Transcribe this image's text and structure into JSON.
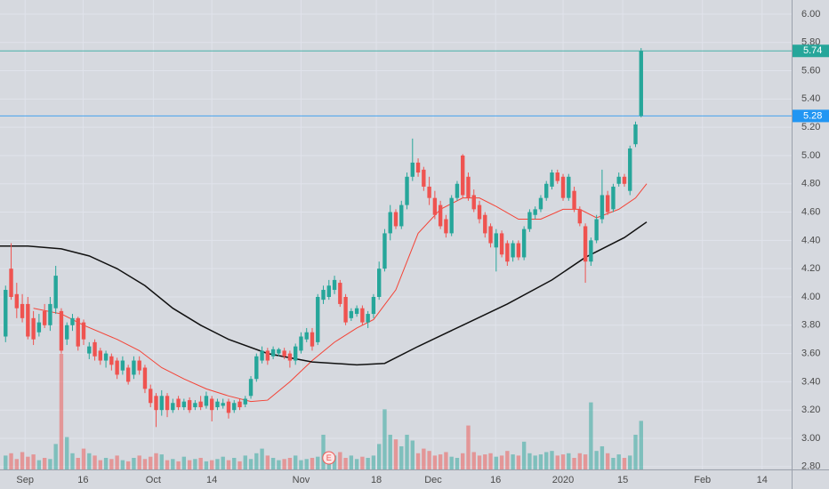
{
  "chart_data": {
    "type": "candlestick",
    "xlim": [
      -1,
      141
    ],
    "ylim": [
      2.78,
      6.1
    ],
    "volume_ylim": [
      0,
      406
    ],
    "up_color": "#26a69a",
    "down_color": "#ef5350",
    "grid": true,
    "yticks": [
      {
        "value": 2.8,
        "label": "2.80"
      },
      {
        "value": 3.0,
        "label": "3.00"
      },
      {
        "value": 3.2,
        "label": "3.20"
      },
      {
        "value": 3.4,
        "label": "3.40"
      },
      {
        "value": 3.6,
        "label": "3.60"
      },
      {
        "value": 3.8,
        "label": "3.80"
      },
      {
        "value": 4.0,
        "label": "4.00"
      },
      {
        "value": 4.2,
        "label": "4.20"
      },
      {
        "value": 4.4,
        "label": "4.40"
      },
      {
        "value": 4.6,
        "label": "4.60"
      },
      {
        "value": 4.8,
        "label": "4.80"
      },
      {
        "value": 5.0,
        "label": "5.00"
      },
      {
        "value": 5.2,
        "label": "5.20"
      },
      {
        "value": 5.4,
        "label": "5.40"
      },
      {
        "value": 5.6,
        "label": "5.60"
      },
      {
        "value": 5.8,
        "label": "5.80"
      },
      {
        "value": 6.0,
        "label": "6.00"
      }
    ],
    "xticks": [
      {
        "value": 3.5,
        "label": "Sep"
      },
      {
        "value": 13.9,
        "label": "16"
      },
      {
        "value": 26.5,
        "label": "Oct"
      },
      {
        "value": 37,
        "label": "14"
      },
      {
        "value": 53,
        "label": "Nov"
      },
      {
        "value": 66.5,
        "label": "18"
      },
      {
        "value": 76.7,
        "label": "Dec"
      },
      {
        "value": 87.9,
        "label": "16"
      },
      {
        "value": 100,
        "label": "2020"
      },
      {
        "value": 110.7,
        "label": "15"
      },
      {
        "value": 125,
        "label": "Feb"
      },
      {
        "value": 135.7,
        "label": "14"
      }
    ],
    "ohlc": [
      [
        3.72,
        4.08,
        3.68,
        4.05
      ],
      [
        4.2,
        4.38,
        3.98,
        4.0
      ],
      [
        4.02,
        4.1,
        3.85,
        3.92
      ],
      [
        3.95,
        4.02,
        3.82,
        3.85
      ],
      [
        3.95,
        4.0,
        3.7,
        3.72
      ],
      [
        3.85,
        3.9,
        3.66,
        3.7
      ],
      [
        3.75,
        3.88,
        3.72,
        3.82
      ],
      [
        3.9,
        3.95,
        3.78,
        3.8
      ],
      [
        3.8,
        4.0,
        3.76,
        3.95
      ],
      [
        3.92,
        4.22,
        3.88,
        4.15
      ],
      [
        3.9,
        3.92,
        3.6,
        3.62
      ],
      [
        3.7,
        3.82,
        3.66,
        3.8
      ],
      [
        3.8,
        3.88,
        3.76,
        3.85
      ],
      [
        3.85,
        3.86,
        3.62,
        3.65
      ],
      [
        3.82,
        3.84,
        3.66,
        3.7
      ],
      [
        3.6,
        3.68,
        3.56,
        3.65
      ],
      [
        3.68,
        3.7,
        3.55,
        3.58
      ],
      [
        3.62,
        3.64,
        3.52,
        3.55
      ],
      [
        3.55,
        3.62,
        3.5,
        3.6
      ],
      [
        3.58,
        3.6,
        3.48,
        3.52
      ],
      [
        3.55,
        3.57,
        3.42,
        3.45
      ],
      [
        3.48,
        3.58,
        3.45,
        3.55
      ],
      [
        3.5,
        3.52,
        3.38,
        3.4
      ],
      [
        3.45,
        3.58,
        3.42,
        3.55
      ],
      [
        3.55,
        3.58,
        3.45,
        3.48
      ],
      [
        3.5,
        3.52,
        3.32,
        3.35
      ],
      [
        3.35,
        3.38,
        3.22,
        3.25
      ],
      [
        3.3,
        3.32,
        3.08,
        3.2
      ],
      [
        3.2,
        3.34,
        3.16,
        3.3
      ],
      [
        3.3,
        3.32,
        3.15,
        3.2
      ],
      [
        3.2,
        3.28,
        3.18,
        3.25
      ],
      [
        3.28,
        3.3,
        3.2,
        3.22
      ],
      [
        3.22,
        3.28,
        3.2,
        3.26
      ],
      [
        3.27,
        3.29,
        3.18,
        3.2
      ],
      [
        3.22,
        3.27,
        3.2,
        3.25
      ],
      [
        3.26,
        3.3,
        3.2,
        3.22
      ],
      [
        3.23,
        3.33,
        3.21,
        3.3
      ],
      [
        3.28,
        3.3,
        3.12,
        3.2
      ],
      [
        3.22,
        3.28,
        3.2,
        3.26
      ],
      [
        3.23,
        3.28,
        3.21,
        3.25
      ],
      [
        3.26,
        3.28,
        3.14,
        3.18
      ],
      [
        3.2,
        3.27,
        3.18,
        3.25
      ],
      [
        3.26,
        3.28,
        3.2,
        3.22
      ],
      [
        3.24,
        3.3,
        3.22,
        3.28
      ],
      [
        3.3,
        3.44,
        3.28,
        3.42
      ],
      [
        3.42,
        3.6,
        3.4,
        3.58
      ],
      [
        3.55,
        3.65,
        3.53,
        3.62
      ],
      [
        3.62,
        3.64,
        3.52,
        3.55
      ],
      [
        3.58,
        3.65,
        3.56,
        3.63
      ],
      [
        3.6,
        3.64,
        3.58,
        3.63
      ],
      [
        3.62,
        3.64,
        3.56,
        3.58
      ],
      [
        3.6,
        3.62,
        3.5,
        3.55
      ],
      [
        3.55,
        3.67,
        3.52,
        3.65
      ],
      [
        3.62,
        3.75,
        3.6,
        3.72
      ],
      [
        3.7,
        3.78,
        3.68,
        3.75
      ],
      [
        3.75,
        3.78,
        3.62,
        3.65
      ],
      [
        3.68,
        4.02,
        3.66,
        4.0
      ],
      [
        3.98,
        4.08,
        3.95,
        4.05
      ],
      [
        4.0,
        4.12,
        3.98,
        4.08
      ],
      [
        4.05,
        4.15,
        4.02,
        4.12
      ],
      [
        4.1,
        4.12,
        3.93,
        3.95
      ],
      [
        4.0,
        4.02,
        3.8,
        3.82
      ],
      [
        3.85,
        3.92,
        3.83,
        3.9
      ],
      [
        3.88,
        3.94,
        3.86,
        3.92
      ],
      [
        3.92,
        3.94,
        3.8,
        3.82
      ],
      [
        3.82,
        3.9,
        3.78,
        3.88
      ],
      [
        3.88,
        4.02,
        3.85,
        4.0
      ],
      [
        4.0,
        4.25,
        3.98,
        4.2
      ],
      [
        4.2,
        4.48,
        4.18,
        4.45
      ],
      [
        4.45,
        4.65,
        4.4,
        4.6
      ],
      [
        4.6,
        4.62,
        4.48,
        4.5
      ],
      [
        4.5,
        4.68,
        4.48,
        4.65
      ],
      [
        4.65,
        4.88,
        4.62,
        4.85
      ],
      [
        4.85,
        5.12,
        4.82,
        4.95
      ],
      [
        4.95,
        4.98,
        4.85,
        4.88
      ],
      [
        4.9,
        4.92,
        4.75,
        4.78
      ],
      [
        4.78,
        4.85,
        4.65,
        4.7
      ],
      [
        4.7,
        4.75,
        4.55,
        4.58
      ],
      [
        4.65,
        4.68,
        4.48,
        4.5
      ],
      [
        4.55,
        4.58,
        4.42,
        4.45
      ],
      [
        4.45,
        4.72,
        4.43,
        4.7
      ],
      [
        4.7,
        4.82,
        4.68,
        4.8
      ],
      [
        5.0,
        5.01,
        4.7,
        4.72
      ],
      [
        4.85,
        4.88,
        4.68,
        4.7
      ],
      [
        4.72,
        4.76,
        4.6,
        4.62
      ],
      [
        4.65,
        4.68,
        4.52,
        4.55
      ],
      [
        4.58,
        4.6,
        4.42,
        4.45
      ],
      [
        4.5,
        4.52,
        4.35,
        4.38
      ],
      [
        4.35,
        4.48,
        4.18,
        4.45
      ],
      [
        4.45,
        4.47,
        4.28,
        4.3
      ],
      [
        4.38,
        4.4,
        4.22,
        4.25
      ],
      [
        4.28,
        4.4,
        4.25,
        4.38
      ],
      [
        4.38,
        4.4,
        4.26,
        4.28
      ],
      [
        4.28,
        4.5,
        4.26,
        4.48
      ],
      [
        4.48,
        4.62,
        4.46,
        4.6
      ],
      [
        4.58,
        4.64,
        4.55,
        4.62
      ],
      [
        4.62,
        4.72,
        4.6,
        4.7
      ],
      [
        4.7,
        4.82,
        4.68,
        4.8
      ],
      [
        4.78,
        4.9,
        4.76,
        4.88
      ],
      [
        4.88,
        4.9,
        4.8,
        4.82
      ],
      [
        4.85,
        4.87,
        4.68,
        4.7
      ],
      [
        4.7,
        4.87,
        4.68,
        4.85
      ],
      [
        4.75,
        4.78,
        4.6,
        4.62
      ],
      [
        4.62,
        4.64,
        4.5,
        4.52
      ],
      [
        4.5,
        4.52,
        4.1,
        4.25
      ],
      [
        4.25,
        4.42,
        4.22,
        4.4
      ],
      [
        4.4,
        4.58,
        4.38,
        4.55
      ],
      [
        4.55,
        4.9,
        4.52,
        4.72
      ],
      [
        4.72,
        4.75,
        4.58,
        4.6
      ],
      [
        4.62,
        4.8,
        4.6,
        4.78
      ],
      [
        4.8,
        4.88,
        4.78,
        4.85
      ],
      [
        4.85,
        4.87,
        4.78,
        4.8
      ],
      [
        4.75,
        5.07,
        4.72,
        5.05
      ],
      [
        5.08,
        5.24,
        5.06,
        5.22
      ],
      [
        5.28,
        5.76,
        5.27,
        5.74
      ]
    ],
    "volume": [
      12,
      14,
      9,
      15,
      11,
      13,
      8,
      10,
      9,
      22,
      100,
      28,
      14,
      10,
      18,
      14,
      12,
      8,
      10,
      9,
      12,
      8,
      7,
      10,
      12,
      9,
      11,
      14,
      13,
      8,
      9,
      7,
      11,
      8,
      9,
      10,
      7,
      8,
      9,
      11,
      8,
      10,
      7,
      12,
      9,
      14,
      18,
      12,
      10,
      8,
      9,
      10,
      12,
      8,
      9,
      10,
      11,
      30,
      14,
      12,
      15,
      10,
      12,
      9,
      11,
      10,
      12,
      22,
      52,
      30,
      26,
      20,
      30,
      25,
      14,
      18,
      16,
      12,
      13,
      15,
      11,
      10,
      14,
      38,
      15,
      12,
      13,
      14,
      11,
      12,
      16,
      13,
      12,
      24,
      14,
      12,
      13,
      15,
      16,
      12,
      13,
      14,
      10,
      14,
      13,
      58,
      16,
      20,
      14,
      10,
      13,
      10,
      12,
      30,
      42
    ],
    "ma_lines": [
      {
        "color": "#f44336",
        "x": [
          5,
          10,
          14,
          20,
          24,
          28,
          32,
          36,
          40,
          44,
          47,
          51,
          55,
          59,
          63,
          66,
          70,
          74,
          78,
          82,
          85,
          88,
          92,
          96,
          100,
          103,
          106,
          110,
          113,
          115
        ],
        "values": [
          3.92,
          3.88,
          3.8,
          3.7,
          3.62,
          3.5,
          3.42,
          3.35,
          3.3,
          3.26,
          3.27,
          3.4,
          3.55,
          3.68,
          3.78,
          3.84,
          4.05,
          4.45,
          4.62,
          4.7,
          4.7,
          4.64,
          4.55,
          4.55,
          4.62,
          4.62,
          4.56,
          4.62,
          4.7,
          4.8
        ]
      },
      {
        "color": "#111111",
        "x": [
          -1,
          4,
          10,
          15,
          20,
          25,
          30,
          35,
          40,
          47,
          55,
          63,
          68,
          74,
          82,
          90,
          98,
          104,
          111,
          115
        ],
        "values": [
          4.36,
          4.36,
          4.34,
          4.29,
          4.2,
          4.08,
          3.92,
          3.8,
          3.7,
          3.6,
          3.54,
          3.52,
          3.53,
          3.65,
          3.8,
          3.95,
          4.12,
          4.28,
          4.42,
          4.53
        ]
      }
    ],
    "price_lines": [
      {
        "value": 5.74,
        "label": "5.74",
        "color": "#26a69a"
      },
      {
        "value": 5.28,
        "label": "5.28",
        "color": "#2196f3"
      }
    ],
    "events": [
      {
        "x": 58,
        "label": "E"
      }
    ]
  }
}
